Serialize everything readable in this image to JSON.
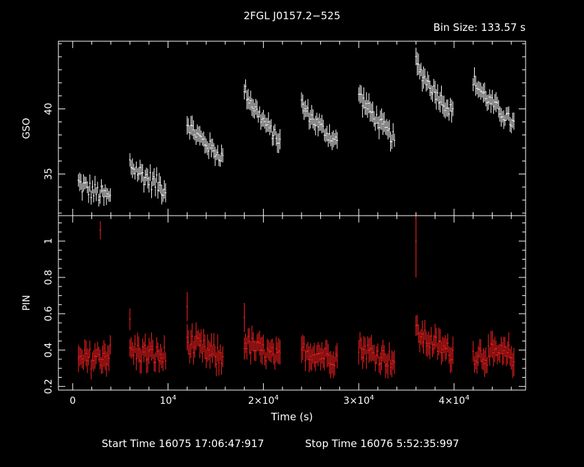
{
  "header": {
    "title": "2FGL J0157.2−525",
    "bin_size": "Bin Size: 133.57 s"
  },
  "footer": {
    "start_label": "Start Time 16075 17:06:47:917",
    "stop_label": "Stop Time 16076  5:52:35:997"
  },
  "colors": {
    "background": "#000000",
    "axes": "#ffffff",
    "gso_series": "#ffffff",
    "pin_series": "#ff2020"
  },
  "chart_data": [
    {
      "type": "scatter",
      "panel": "top",
      "ylabel": "GSO",
      "xlim": [
        -1500,
        47500
      ],
      "ylim": [
        31.8,
        45.2
      ],
      "yticks": [
        {
          "v": 35,
          "t": "35"
        },
        {
          "v": 40,
          "t": "40"
        }
      ],
      "y_minor_step": 1,
      "x_ticks_at": [
        0,
        10000,
        20000,
        30000,
        40000
      ],
      "x_minor_step": 2000,
      "series": [
        {
          "color": "#ffffff",
          "segments": [
            {
              "x0": 600,
              "x1": 4000,
              "y0": 34.3,
              "y1": 33.1,
              "jitter": 0.7,
              "err": 0.55
            },
            {
              "x0": 6000,
              "x1": 9800,
              "y0": 35.8,
              "y1": 33.8,
              "jitter": 0.7,
              "err": 0.6
            },
            {
              "x0": 12000,
              "x1": 15800,
              "y0": 39.0,
              "y1": 36.2,
              "jitter": 0.5,
              "err": 0.6
            },
            {
              "x0": 18000,
              "x1": 21800,
              "y0": 41.6,
              "y1": 37.4,
              "jitter": 0.5,
              "err": 0.6
            },
            {
              "x0": 24000,
              "x1": 27800,
              "y0": 40.4,
              "y1": 37.4,
              "jitter": 0.5,
              "err": 0.6
            },
            {
              "x0": 30000,
              "x1": 33800,
              "y0": 41.3,
              "y1": 37.6,
              "jitter": 0.5,
              "err": 0.7
            },
            {
              "x0": 36000,
              "x1": 40000,
              "y0": 43.6,
              "y1": 39.6,
              "jitter": 0.5,
              "err": 0.7
            },
            {
              "x0": 42000,
              "x1": 46300,
              "y0": 42.3,
              "y1": 38.8,
              "jitter": 0.5,
              "err": 0.6
            }
          ]
        }
      ]
    },
    {
      "type": "scatter",
      "panel": "bottom",
      "xlabel": "Time (s)",
      "ylabel": "PIN",
      "xlim": [
        -1500,
        47500
      ],
      "ylim": [
        0.18,
        1.14
      ],
      "yticks": [
        {
          "v": 0.2,
          "t": "0.2"
        },
        {
          "v": 0.4,
          "t": "0.4"
        },
        {
          "v": 0.6,
          "t": "0.6"
        },
        {
          "v": 0.8,
          "t": "0.8"
        },
        {
          "v": 1.0,
          "t": "1"
        }
      ],
      "y_minor_step": 0.05,
      "xticks": [
        {
          "v": 0,
          "base": "0",
          "exp": ""
        },
        {
          "v": 10000,
          "base": "10",
          "exp": "4"
        },
        {
          "v": 20000,
          "base": "2×10",
          "exp": "4"
        },
        {
          "v": 30000,
          "base": "3×10",
          "exp": "4"
        },
        {
          "v": 40000,
          "base": "4×10",
          "exp": "4"
        }
      ],
      "x_minor_step": 2000,
      "series": [
        {
          "color": "#ff2020",
          "segments": [
            {
              "x0": 600,
              "x1": 4000,
              "y0": 0.33,
              "y1": 0.38,
              "jitter": 0.06,
              "err": 0.06
            },
            {
              "x0": 6000,
              "x1": 9800,
              "y0": 0.4,
              "y1": 0.36,
              "jitter": 0.06,
              "err": 0.06
            },
            {
              "x0": 12000,
              "x1": 15800,
              "y0": 0.45,
              "y1": 0.35,
              "jitter": 0.06,
              "err": 0.06
            },
            {
              "x0": 18000,
              "x1": 21800,
              "y0": 0.45,
              "y1": 0.35,
              "jitter": 0.05,
              "err": 0.06
            },
            {
              "x0": 24000,
              "x1": 27800,
              "y0": 0.4,
              "y1": 0.36,
              "jitter": 0.05,
              "err": 0.06
            },
            {
              "x0": 30000,
              "x1": 33800,
              "y0": 0.42,
              "y1": 0.34,
              "jitter": 0.05,
              "err": 0.06
            },
            {
              "x0": 36000,
              "x1": 40000,
              "y0": 0.5,
              "y1": 0.38,
              "jitter": 0.05,
              "err": 0.06
            },
            {
              "x0": 42000,
              "x1": 46300,
              "y0": 0.38,
              "y1": 0.37,
              "jitter": 0.06,
              "err": 0.06
            }
          ],
          "spikes": [
            {
              "x": 2900,
              "y": 1.06,
              "err": 0.05
            },
            {
              "x": 36000,
              "y": 1.0,
              "err": 0.2
            },
            {
              "x": 12000,
              "y": 0.64,
              "err": 0.08
            },
            {
              "x": 18000,
              "y": 0.58,
              "err": 0.08
            },
            {
              "x": 6000,
              "y": 0.57,
              "err": 0.06
            }
          ]
        }
      ]
    }
  ]
}
